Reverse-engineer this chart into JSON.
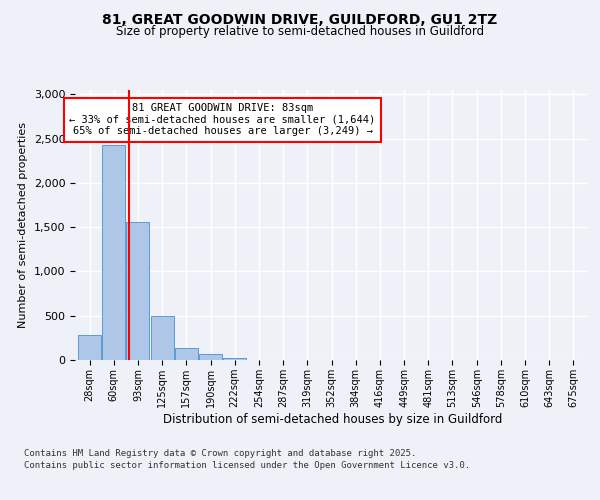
{
  "title1": "81, GREAT GOODWIN DRIVE, GUILDFORD, GU1 2TZ",
  "title2": "Size of property relative to semi-detached houses in Guildford",
  "xlabel": "Distribution of semi-detached houses by size in Guildford",
  "ylabel": "Number of semi-detached properties",
  "bin_labels": [
    "28sqm",
    "60sqm",
    "93sqm",
    "125sqm",
    "157sqm",
    "190sqm",
    "222sqm",
    "254sqm",
    "287sqm",
    "319sqm",
    "352sqm",
    "384sqm",
    "416sqm",
    "449sqm",
    "481sqm",
    "513sqm",
    "546sqm",
    "578sqm",
    "610sqm",
    "643sqm",
    "675sqm"
  ],
  "bar_values": [
    280,
    2430,
    1560,
    500,
    140,
    70,
    20,
    5,
    3,
    2,
    1,
    0,
    0,
    0,
    0,
    0,
    0,
    0,
    0,
    0,
    0
  ],
  "bar_color": "#aec6e8",
  "bar_edge_color": "#5b9bd5",
  "property_line_x": 1.65,
  "property_size": "83sqm",
  "pct_smaller": 33,
  "n_smaller": "1,644",
  "pct_larger": 65,
  "n_larger": "3,249",
  "ylim": [
    0,
    3050
  ],
  "yticks": [
    0,
    500,
    1000,
    1500,
    2000,
    2500,
    3000
  ],
  "footer1": "Contains HM Land Registry data © Crown copyright and database right 2025.",
  "footer2": "Contains public sector information licensed under the Open Government Licence v3.0.",
  "bg_color": "#eef2f8",
  "plot_bg_color": "#eef2f8"
}
